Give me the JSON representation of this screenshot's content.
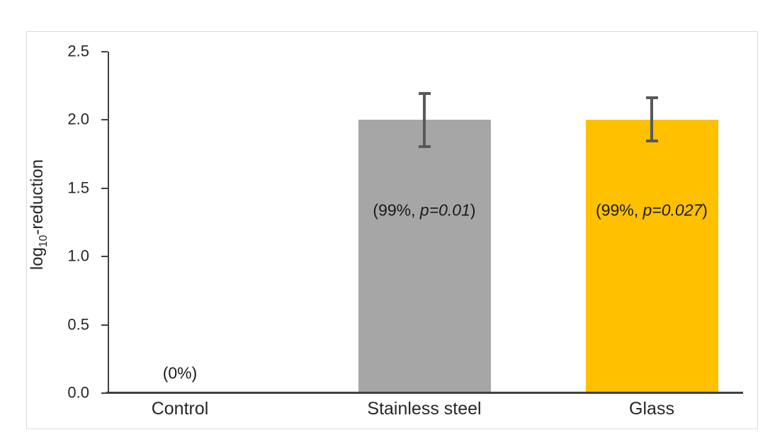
{
  "chart_data": {
    "type": "bar",
    "categories": [
      "Control",
      "Stainless steel",
      "Glass"
    ],
    "values": [
      0,
      2.0,
      2.0
    ],
    "error_bars": [
      {
        "plus": 0,
        "minus": 0
      },
      {
        "plus": 0.2,
        "minus": 0.2
      },
      {
        "plus": 0.17,
        "minus": 0.16
      }
    ],
    "bar_colors": [
      "#A6A6A6",
      "#A6A6A6",
      "#FFC000"
    ],
    "data_labels": [
      {
        "prefix": "(0%)",
        "italic": "",
        "suffix": ""
      },
      {
        "prefix": "(99%, ",
        "italic": "p=0.01",
        "suffix": ")"
      },
      {
        "prefix": "(99%, ",
        "italic": "p=0.027",
        "suffix": ")"
      }
    ],
    "ylabel": {
      "pre": "log",
      "sub": "10",
      "post": "-reduction"
    },
    "xlabel": "",
    "title": "",
    "ylim": [
      0,
      2.5
    ],
    "yticks": [
      "0.0",
      "0.5",
      "1.0",
      "1.5",
      "2.0",
      "2.5"
    ],
    "grid": false,
    "legend": null
  },
  "colors": {
    "bar_gray": "#A6A6A6",
    "bar_gold": "#FFC000",
    "error_bar": "#595959",
    "axis_line": "#404040",
    "text": "#262626",
    "frame_border": "#D9D9D9"
  }
}
